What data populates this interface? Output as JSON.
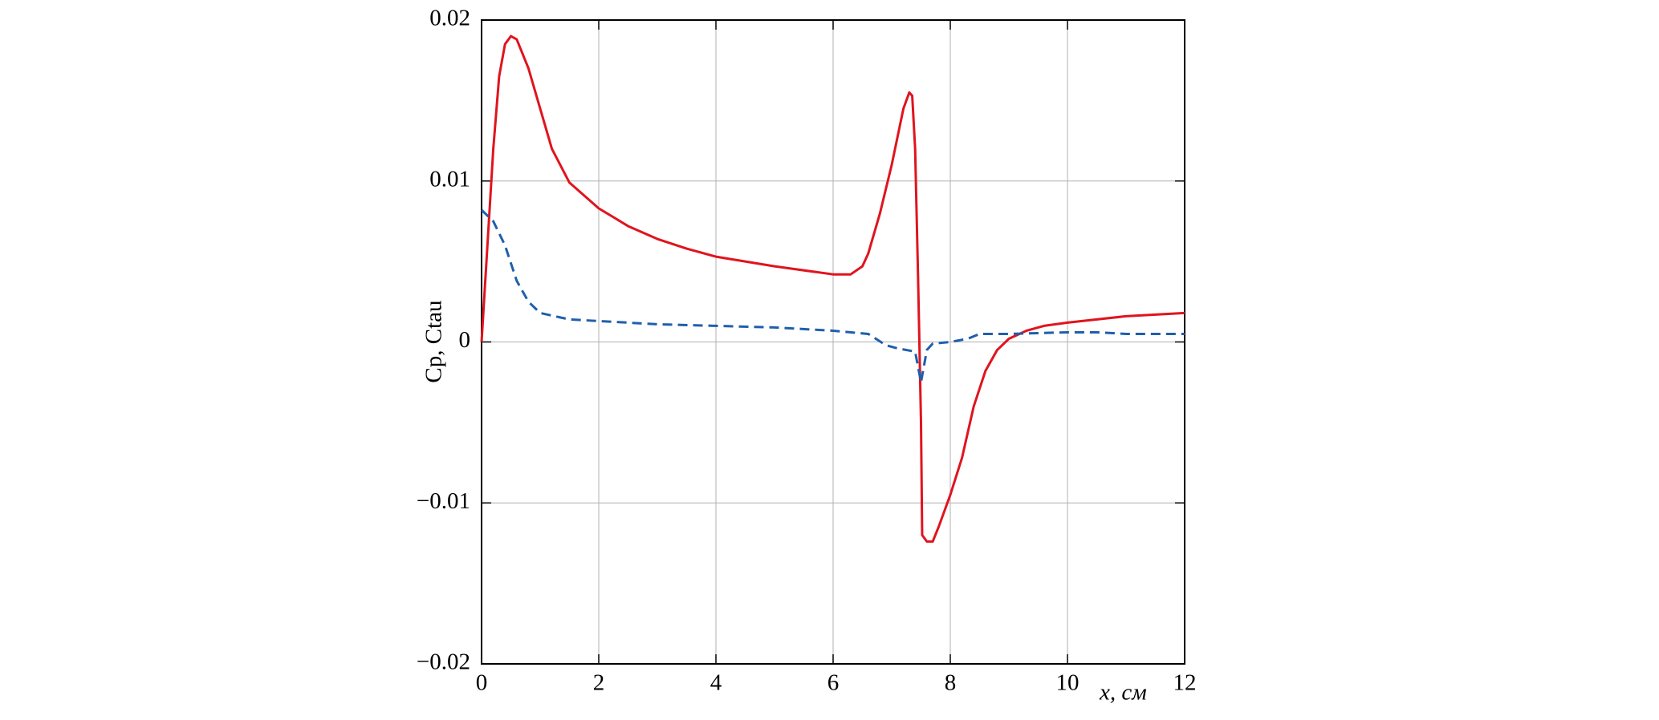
{
  "chart_data": {
    "type": "line",
    "xlabel": "x, см",
    "ylabel": "Cp, Ctau",
    "xlim": [
      0,
      12
    ],
    "xticks": [
      0,
      2,
      4,
      6,
      8,
      10,
      12
    ],
    "ylim": [
      -0.02,
      0.02
    ],
    "yticks": [
      {
        "value": -0.02,
        "label": "−0.02"
      },
      {
        "value": -0.01,
        "label": "−0.01"
      },
      0,
      0.01,
      0.02
    ],
    "grid": true,
    "series": [
      {
        "color": "#e0141e",
        "dash": false,
        "x": [
          0,
          0.1,
          0.2,
          0.3,
          0.4,
          0.5,
          0.6,
          0.8,
          1.0,
          1.2,
          1.5,
          2,
          2.5,
          3,
          3.5,
          4,
          5,
          6,
          6.3,
          6.5,
          6.6,
          6.8,
          7.0,
          7.2,
          7.3,
          7.35,
          7.4,
          7.45,
          7.5,
          7.52,
          7.6,
          7.7,
          7.8,
          8.0,
          8.2,
          8.4,
          8.6,
          8.8,
          9.0,
          9.3,
          9.6,
          10,
          11,
          12
        ],
        "values": [
          0,
          0.006,
          0.012,
          0.0165,
          0.0185,
          0.019,
          0.0188,
          0.017,
          0.0145,
          0.012,
          0.0099,
          0.0083,
          0.0072,
          0.0064,
          0.0058,
          0.0053,
          0.0047,
          0.0042,
          0.0042,
          0.0047,
          0.0055,
          0.008,
          0.011,
          0.0145,
          0.0155,
          0.0153,
          0.012,
          0.004,
          -0.005,
          -0.012,
          -0.0124,
          -0.0124,
          -0.0115,
          -0.0095,
          -0.0072,
          -0.004,
          -0.0018,
          -0.0005,
          0.0002,
          0.0007,
          0.001,
          0.0012,
          0.0016,
          0.0018
        ]
      },
      {
        "color": "#1f5fad",
        "dash": true,
        "x": [
          0,
          0.2,
          0.4,
          0.6,
          0.8,
          1.0,
          1.5,
          2,
          3,
          4,
          5,
          6,
          6.6,
          6.9,
          7.1,
          7.4,
          7.5,
          7.6,
          7.7,
          8,
          8.3,
          8.5,
          9,
          10,
          10.5,
          11,
          12
        ],
        "values": [
          0.0082,
          0.0075,
          0.006,
          0.0038,
          0.0025,
          0.0018,
          0.0014,
          0.0013,
          0.0011,
          0.001,
          0.0009,
          0.0007,
          0.0005,
          -0.0002,
          -0.0004,
          -0.0006,
          -0.0025,
          -0.0005,
          -0.0001,
          0,
          0.0002,
          0.0005,
          0.0005,
          0.0006,
          0.0006,
          0.0005,
          0.0005
        ]
      }
    ]
  }
}
